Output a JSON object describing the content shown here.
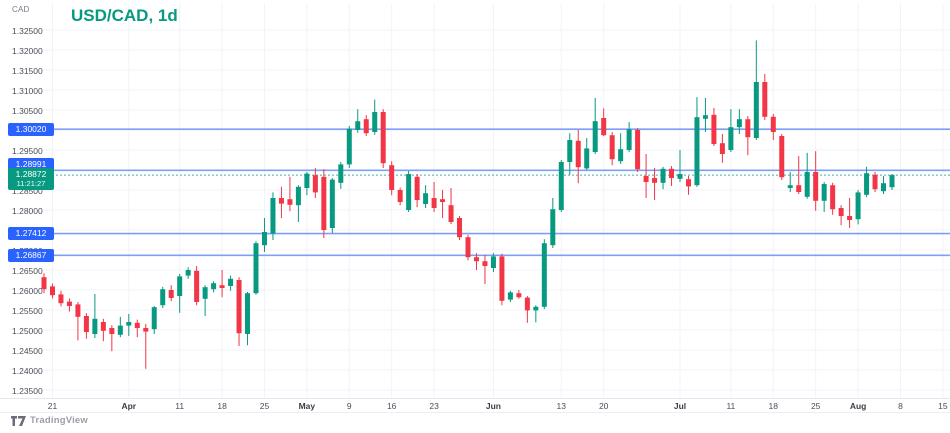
{
  "header": {
    "currency_label": "CAD",
    "title": "USD/CAD, 1d"
  },
  "footer": {
    "logo_text": "TradingView"
  },
  "colors": {
    "up": "#089981",
    "down": "#f23645",
    "badge_blue": "#2962ff",
    "level_line": "#7f9ff7",
    "grid": "#f0f3fa",
    "axis_text": "#4a4e59",
    "title": "#089981",
    "current": "#089981",
    "muted": "#9b9ea6"
  },
  "price_axis": {
    "labels": [
      "1.32500",
      "1.32000",
      "1.31500",
      "1.31000",
      "1.30500",
      "1.30000",
      "1.29500",
      "1.29000",
      "1.28500",
      "1.28000",
      "1.27500",
      "1.27000",
      "1.26500",
      "1.26000",
      "1.25500",
      "1.25000",
      "1.24500",
      "1.24000",
      "1.23500"
    ]
  },
  "time_axis": {
    "ticks": [
      {
        "index": 1,
        "label": "21",
        "month": false
      },
      {
        "index": 10,
        "label": "Apr",
        "month": true
      },
      {
        "index": 16,
        "label": "11",
        "month": false
      },
      {
        "index": 21,
        "label": "18",
        "month": false
      },
      {
        "index": 26,
        "label": "25",
        "month": false
      },
      {
        "index": 31,
        "label": "May",
        "month": true
      },
      {
        "index": 36,
        "label": "9",
        "month": false
      },
      {
        "index": 41,
        "label": "16",
        "month": false
      },
      {
        "index": 46,
        "label": "23",
        "month": false
      },
      {
        "index": 53,
        "label": "Jun",
        "month": true
      },
      {
        "index": 61,
        "label": "13",
        "month": false
      },
      {
        "index": 66,
        "label": "20",
        "month": false
      },
      {
        "index": 75,
        "label": "Jul",
        "month": true
      },
      {
        "index": 81,
        "label": "11",
        "month": false
      },
      {
        "index": 86,
        "label": "18",
        "month": false
      },
      {
        "index": 91,
        "label": "25",
        "month": false
      },
      {
        "index": 96,
        "label": "Aug",
        "month": true
      },
      {
        "index": 101,
        "label": "8",
        "month": false
      },
      {
        "index": 106,
        "label": "15",
        "month": false
      }
    ]
  },
  "price_lines": [
    {
      "price": 1.3002,
      "label": "1.30020"
    },
    {
      "price": 1.28991,
      "label": "1.28991"
    },
    {
      "price": 1.27412,
      "label": "1.27412"
    },
    {
      "price": 1.26867,
      "label": "1.26867"
    }
  ],
  "current_price": {
    "price": 1.28872,
    "label": "1.28872",
    "countdown": "11:21:27"
  },
  "chart_data": {
    "type": "candlestick",
    "title": "USD/CAD, 1d",
    "symbol": "USD/CAD",
    "interval": "1d",
    "ylabel": "CAD",
    "ylim": [
      1.235,
      1.325
    ],
    "price_grid_step": 0.005,
    "grid": true,
    "legend_position": "none",
    "dates": [
      "Mar 18",
      "Mar 21",
      "Mar 22",
      "Mar 23",
      "Mar 24",
      "Mar 25",
      "Mar 28",
      "Mar 29",
      "Mar 30",
      "Mar 31",
      "Apr 1",
      "Apr 4",
      "Apr 5",
      "Apr 6",
      "Apr 7",
      "Apr 8",
      "Apr 11",
      "Apr 12",
      "Apr 13",
      "Apr 14",
      "Apr 15",
      "Apr 18",
      "Apr 19",
      "Apr 20",
      "Apr 21",
      "Apr 22",
      "Apr 25",
      "Apr 26",
      "Apr 27",
      "Apr 28",
      "Apr 29",
      "May 2",
      "May 3",
      "May 4",
      "May 5",
      "May 6",
      "May 9",
      "May 10",
      "May 11",
      "May 12",
      "May 13",
      "May 16",
      "May 17",
      "May 18",
      "May 19",
      "May 20",
      "May 23",
      "May 24",
      "May 25",
      "May 26",
      "May 27",
      "May 30",
      "May 31",
      "Jun 1",
      "Jun 2",
      "Jun 3",
      "Jun 6",
      "Jun 7",
      "Jun 8",
      "Jun 9",
      "Jun 10",
      "Jun 13",
      "Jun 14",
      "Jun 15",
      "Jun 16",
      "Jun 17",
      "Jun 20",
      "Jun 21",
      "Jun 22",
      "Jun 23",
      "Jun 24",
      "Jun 27",
      "Jun 28",
      "Jun 29",
      "Jun 30",
      "Jul 1",
      "Jul 4",
      "Jul 5",
      "Jul 6",
      "Jul 7",
      "Jul 8",
      "Jul 11",
      "Jul 12",
      "Jul 13",
      "Jul 14",
      "Jul 15",
      "Jul 18",
      "Jul 19",
      "Jul 20",
      "Jul 21",
      "Jul 22",
      "Jul 25",
      "Jul 26",
      "Jul 27",
      "Jul 28",
      "Jul 29",
      "Aug 1",
      "Aug 2",
      "Aug 3",
      "Aug 4",
      "Aug 5"
    ],
    "ohlc": [
      [
        1.2632,
        1.2642,
        1.2592,
        1.2602
      ],
      [
        1.2609,
        1.2616,
        1.2579,
        1.2587
      ],
      [
        1.2589,
        1.2598,
        1.2559,
        1.2567
      ],
      [
        1.2571,
        1.2579,
        1.2546,
        1.256
      ],
      [
        1.2564,
        1.257,
        1.2474,
        1.2533
      ],
      [
        1.2535,
        1.2542,
        1.2478,
        1.2495
      ],
      [
        1.249,
        1.259,
        1.248,
        1.2528
      ],
      [
        1.252,
        1.2528,
        1.2472,
        1.2498
      ],
      [
        1.2505,
        1.2512,
        1.2447,
        1.249
      ],
      [
        1.2488,
        1.2533,
        1.2482,
        1.2511
      ],
      [
        1.2511,
        1.254,
        1.2485,
        1.252
      ],
      [
        1.2518,
        1.2526,
        1.2482,
        1.2505
      ],
      [
        1.2505,
        1.2515,
        1.2403,
        1.2496
      ],
      [
        1.2502,
        1.256,
        1.249,
        1.2557
      ],
      [
        1.2562,
        1.2608,
        1.2555,
        1.2602
      ],
      [
        1.26,
        1.2612,
        1.2572,
        1.258
      ],
      [
        1.2585,
        1.264,
        1.2543,
        1.2634
      ],
      [
        1.2636,
        1.2657,
        1.2628,
        1.265
      ],
      [
        1.2648,
        1.266,
        1.2562,
        1.257
      ],
      [
        1.2578,
        1.2612,
        1.2535,
        1.2607
      ],
      [
        1.2602,
        1.2622,
        1.2594,
        1.2617
      ],
      [
        1.2612,
        1.265,
        1.2582,
        1.2605
      ],
      [
        1.261,
        1.2636,
        1.2598,
        1.2628
      ],
      [
        1.2625,
        1.2632,
        1.246,
        1.2492
      ],
      [
        1.249,
        1.2595,
        1.2462,
        1.2592
      ],
      [
        1.2592,
        1.2722,
        1.2588,
        1.2717
      ],
      [
        1.2712,
        1.278,
        1.2695,
        1.2745
      ],
      [
        1.2741,
        1.2844,
        1.2725,
        1.283
      ],
      [
        1.283,
        1.2858,
        1.278,
        1.2816
      ],
      [
        1.2827,
        1.2883,
        1.2797,
        1.2813
      ],
      [
        1.2812,
        1.2862,
        1.277,
        1.2858
      ],
      [
        1.2855,
        1.2895,
        1.2837,
        1.2891
      ],
      [
        1.2887,
        1.2905,
        1.283,
        1.2844
      ],
      [
        1.2883,
        1.2902,
        1.273,
        1.275
      ],
      [
        1.2755,
        1.288,
        1.2742,
        1.2876
      ],
      [
        1.2868,
        1.292,
        1.2853,
        1.2914
      ],
      [
        1.2914,
        1.301,
        1.2905,
        1.3003
      ],
      [
        1.3,
        1.3052,
        1.2993,
        1.3022
      ],
      [
        1.3027,
        1.3037,
        1.2985,
        1.2992
      ],
      [
        1.2995,
        1.3076,
        1.2988,
        1.3045
      ],
      [
        1.3045,
        1.3052,
        1.2905,
        1.2917
      ],
      [
        1.2912,
        1.2922,
        1.2837,
        1.285
      ],
      [
        1.285,
        1.2856,
        1.2812,
        1.282
      ],
      [
        1.28,
        1.2898,
        1.2795,
        1.289
      ],
      [
        1.2883,
        1.289,
        1.2807,
        1.2825
      ],
      [
        1.2815,
        1.2862,
        1.2805,
        1.2842
      ],
      [
        1.283,
        1.287,
        1.2795,
        1.2805
      ],
      [
        1.2827,
        1.285,
        1.278,
        1.282
      ],
      [
        1.2812,
        1.2855,
        1.2765,
        1.277
      ],
      [
        1.278,
        1.2785,
        1.2725,
        1.2732
      ],
      [
        1.2732,
        1.2738,
        1.2674,
        1.2682
      ],
      [
        1.2682,
        1.2692,
        1.265,
        1.2672
      ],
      [
        1.2672,
        1.2688,
        1.2615,
        1.266
      ],
      [
        1.2655,
        1.2692,
        1.2645,
        1.2684
      ],
      [
        1.2684,
        1.2691,
        1.2562,
        1.2573
      ],
      [
        1.2576,
        1.2598,
        1.257,
        1.2594
      ],
      [
        1.2592,
        1.26,
        1.2578,
        1.2582
      ],
      [
        1.2581,
        1.2585,
        1.2518,
        1.2549
      ],
      [
        1.2549,
        1.2562,
        1.2519,
        1.2558
      ],
      [
        1.2558,
        1.2727,
        1.2552,
        1.2717
      ],
      [
        1.2712,
        1.283,
        1.2705,
        1.2802
      ],
      [
        1.28,
        1.2925,
        1.2795,
        1.292
      ],
      [
        1.292,
        1.2992,
        1.2888,
        1.2975
      ],
      [
        1.2973,
        1.3,
        1.2867,
        1.2907
      ],
      [
        1.2904,
        1.298,
        1.29,
        1.2954
      ],
      [
        1.2945,
        1.308,
        1.294,
        1.3022
      ],
      [
        1.303,
        1.3054,
        1.2985,
        1.2987
      ],
      [
        1.2987,
        1.2995,
        1.2912,
        1.2927
      ],
      [
        1.2922,
        1.2992,
        1.2915,
        1.2952
      ],
      [
        1.295,
        1.302,
        1.2945,
        1.3002
      ],
      [
        1.3,
        1.3005,
        1.2895,
        1.2902
      ],
      [
        1.2885,
        1.294,
        1.283,
        1.287
      ],
      [
        1.288,
        1.2905,
        1.2825,
        1.2868
      ],
      [
        1.2868,
        1.2908,
        1.2852,
        1.2903
      ],
      [
        1.2903,
        1.291,
        1.286,
        1.288
      ],
      [
        1.2878,
        1.295,
        1.287,
        1.289
      ],
      [
        1.2877,
        1.2885,
        1.2838,
        1.2859
      ],
      [
        1.2862,
        1.3082,
        1.2858,
        1.3032
      ],
      [
        1.3028,
        1.308,
        1.2995,
        1.3037
      ],
      [
        1.3038,
        1.3055,
        1.296,
        1.2965
      ],
      [
        1.2967,
        1.299,
        1.2918,
        1.294
      ],
      [
        1.295,
        1.3052,
        1.2945,
        1.3007
      ],
      [
        1.3007,
        1.3052,
        1.299,
        1.3027
      ],
      [
        1.3027,
        1.3035,
        1.2937,
        1.2982
      ],
      [
        1.298,
        1.3224,
        1.2975,
        1.312
      ],
      [
        1.312,
        1.314,
        1.3025,
        1.3033
      ],
      [
        1.3033,
        1.304,
        1.2975,
        1.2995
      ],
      [
        1.2985,
        1.299,
        1.2875,
        1.2882
      ],
      [
        1.2855,
        1.2895,
        1.2845,
        1.2862
      ],
      [
        1.2862,
        1.2935,
        1.284,
        1.2845
      ],
      [
        1.2833,
        1.2943,
        1.2828,
        1.2895
      ],
      [
        1.2895,
        1.2947,
        1.2798,
        1.2823
      ],
      [
        1.2823,
        1.287,
        1.2795,
        1.2865
      ],
      [
        1.2862,
        1.2868,
        1.2788,
        1.2802
      ],
      [
        1.2805,
        1.2812,
        1.2762,
        1.2785
      ],
      [
        1.2785,
        1.283,
        1.2755,
        1.2775
      ],
      [
        1.2777,
        1.285,
        1.2764,
        1.2844
      ],
      [
        1.2838,
        1.2908,
        1.2832,
        1.2892
      ],
      [
        1.2888,
        1.2895,
        1.2845,
        1.2852
      ],
      [
        1.2847,
        1.2885,
        1.284,
        1.2867
      ],
      [
        1.2857,
        1.289,
        1.285,
        1.28872
      ]
    ]
  }
}
